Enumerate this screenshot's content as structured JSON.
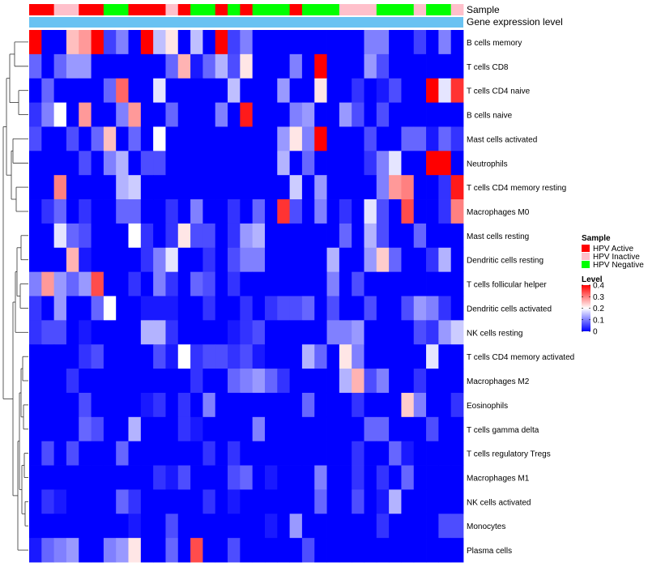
{
  "chart_data": {
    "type": "heatmap",
    "title": "",
    "annotations": [
      {
        "label": "Sample"
      },
      {
        "label": "Gene expression level"
      }
    ],
    "expression_bar_color": "#69c2f2",
    "sample_groups": [
      "HPV Active",
      "HPV Active",
      "HPV Inactive",
      "HPV Inactive",
      "HPV Active",
      "HPV Active",
      "HPV Negative",
      "HPV Negative",
      "HPV Active",
      "HPV Active",
      "HPV Active",
      "HPV Inactive",
      "HPV Active",
      "HPV Negative",
      "HPV Negative",
      "HPV Active",
      "HPV Negative",
      "HPV Active",
      "HPV Negative",
      "HPV Negative",
      "HPV Negative",
      "HPV Active",
      "HPV Negative",
      "HPV Negative",
      "HPV Negative",
      "HPV Inactive",
      "HPV Inactive",
      "HPV Inactive",
      "HPV Negative",
      "HPV Negative",
      "HPV Negative",
      "HPV Inactive",
      "HPV Negative",
      "HPV Negative",
      "HPV Inactive"
    ],
    "rows": [
      "B cells memory",
      "T cells CD8",
      "T cells CD4 naive",
      "B cells naive",
      "Mast cells activated",
      "Neutrophils",
      "T cells CD4 memory resting",
      "Macrophages M0",
      "Mast cells resting",
      "Dendritic cells resting",
      "T cells follicular helper",
      "Dendritic cells activated",
      "NK cells resting",
      "T cells CD4 memory activated",
      "Macrophages M2",
      "Eosinophils",
      "T cells gamma delta",
      "T cells regulatory  Tregs",
      "Macrophages M1",
      "NK cells activated",
      "Monocytes",
      "Plasma cells"
    ],
    "values": [
      [
        0.4,
        0.0,
        0.0,
        0.25,
        0.28,
        0.4,
        0.05,
        0.1,
        0.0,
        0.4,
        0.15,
        0.22,
        0.0,
        0.15,
        0.0,
        0.4,
        0.05,
        0.1,
        0.0,
        0.0,
        0.0,
        0.0,
        0.0,
        0.0,
        0.0,
        0.0,
        0.0,
        0.1,
        0.1,
        0.0,
        0.0,
        0.05,
        0.0,
        0.1,
        0.0
      ],
      [
        0.08,
        0.0,
        0.08,
        0.12,
        0.12,
        0.0,
        0.0,
        0.0,
        0.0,
        0.0,
        0.0,
        0.08,
        0.26,
        0.02,
        0.08,
        0.14,
        0.06,
        0.22,
        0.0,
        0.0,
        0.0,
        0.1,
        0.0,
        0.4,
        0.0,
        0.0,
        0.0,
        0.12,
        0.06,
        0.0,
        0.0,
        0.0,
        0.0,
        0.0,
        0.0
      ],
      [
        0.0,
        0.08,
        0.0,
        0.0,
        0.0,
        0.0,
        0.08,
        0.32,
        0.0,
        0.0,
        0.18,
        0.0,
        0.0,
        0.0,
        0.0,
        0.0,
        0.15,
        0.0,
        0.0,
        0.0,
        0.12,
        0.0,
        0.0,
        0.22,
        0.0,
        0.0,
        0.04,
        0.0,
        0.02,
        0.06,
        0.0,
        0.0,
        0.4,
        0.18,
        0.36
      ],
      [
        0.04,
        0.1,
        0.2,
        0.0,
        0.28,
        0.0,
        0.0,
        0.1,
        0.28,
        0.0,
        0.0,
        0.08,
        0.0,
        0.0,
        0.0,
        0.1,
        0.0,
        0.38,
        0.0,
        0.0,
        0.0,
        0.1,
        0.12,
        0.0,
        0.0,
        0.12,
        0.06,
        0.0,
        0.06,
        0.0,
        0.0,
        0.0,
        0.0,
        0.0,
        0.0
      ],
      [
        0.06,
        0.0,
        0.0,
        0.06,
        0.0,
        0.08,
        0.25,
        0.0,
        0.08,
        0.0,
        0.2,
        0.0,
        0.0,
        0.0,
        0.0,
        0.0,
        0.0,
        0.0,
        0.0,
        0.0,
        0.12,
        0.22,
        0.1,
        0.4,
        0.0,
        0.0,
        0.0,
        0.06,
        0.0,
        0.0,
        0.08,
        0.08,
        0.02,
        0.08,
        0.04
      ],
      [
        0.0,
        0.0,
        0.0,
        0.0,
        0.06,
        0.0,
        0.1,
        0.14,
        0.0,
        0.06,
        0.06,
        0.0,
        0.0,
        0.0,
        0.0,
        0.0,
        0.0,
        0.0,
        0.0,
        0.0,
        0.14,
        0.0,
        0.08,
        0.0,
        0.0,
        0.0,
        0.0,
        0.04,
        0.1,
        0.18,
        0.0,
        0.0,
        0.4,
        0.4,
        0.0
      ],
      [
        0.0,
        0.0,
        0.3,
        0.0,
        0.0,
        0.0,
        0.0,
        0.14,
        0.16,
        0.0,
        0.0,
        0.0,
        0.0,
        0.0,
        0.0,
        0.0,
        0.0,
        0.0,
        0.0,
        0.0,
        0.0,
        0.16,
        0.0,
        0.12,
        0.0,
        0.0,
        0.0,
        0.0,
        0.1,
        0.28,
        0.3,
        0.0,
        0.0,
        0.04,
        0.38
      ],
      [
        0.0,
        0.04,
        0.08,
        0.0,
        0.04,
        0.0,
        0.0,
        0.08,
        0.08,
        0.0,
        0.0,
        0.04,
        0.0,
        0.1,
        0.0,
        0.0,
        0.04,
        0.0,
        0.08,
        0.0,
        0.36,
        0.06,
        0.0,
        0.1,
        0.0,
        0.04,
        0.0,
        0.18,
        0.06,
        0.0,
        0.34,
        0.0,
        0.0,
        0.04,
        0.3
      ],
      [
        0.0,
        0.0,
        0.18,
        0.08,
        0.06,
        0.0,
        0.0,
        0.0,
        0.2,
        0.04,
        0.0,
        0.04,
        0.22,
        0.06,
        0.06,
        0.0,
        0.04,
        0.12,
        0.14,
        0.0,
        0.0,
        0.0,
        0.0,
        0.0,
        0.0,
        0.08,
        0.0,
        0.14,
        0.06,
        0.0,
        0.0,
        0.08,
        0.0,
        0.0,
        0.0
      ],
      [
        0.0,
        0.0,
        0.0,
        0.26,
        0.02,
        0.0,
        0.0,
        0.0,
        0.0,
        0.04,
        0.1,
        0.18,
        0.0,
        0.0,
        0.04,
        0.0,
        0.06,
        0.1,
        0.1,
        0.0,
        0.0,
        0.0,
        0.0,
        0.0,
        0.14,
        0.0,
        0.0,
        0.12,
        0.24,
        0.08,
        0.0,
        0.0,
        0.04,
        0.14,
        0.0
      ],
      [
        0.1,
        0.28,
        0.12,
        0.08,
        0.12,
        0.34,
        0.0,
        0.0,
        0.04,
        0.0,
        0.1,
        0.04,
        0.0,
        0.08,
        0.06,
        0.0,
        0.04,
        0.0,
        0.0,
        0.0,
        0.0,
        0.0,
        0.0,
        0.0,
        0.1,
        0.0,
        0.06,
        0.0,
        0.0,
        0.0,
        0.0,
        0.0,
        0.0,
        0.0,
        0.0
      ],
      [
        0.04,
        0.0,
        0.12,
        0.0,
        0.0,
        0.08,
        0.2,
        0.0,
        0.0,
        0.02,
        0.02,
        0.02,
        0.0,
        0.0,
        0.04,
        0.0,
        0.0,
        0.04,
        0.0,
        0.04,
        0.06,
        0.06,
        0.08,
        0.0,
        0.06,
        0.0,
        0.0,
        0.06,
        0.0,
        0.0,
        0.06,
        0.12,
        0.1,
        0.04,
        0.0
      ],
      [
        0.04,
        0.06,
        0.06,
        0.0,
        0.02,
        0.0,
        0.0,
        0.0,
        0.0,
        0.14,
        0.14,
        0.04,
        0.0,
        0.0,
        0.0,
        0.0,
        0.02,
        0.04,
        0.06,
        0.0,
        0.0,
        0.0,
        0.0,
        0.0,
        0.1,
        0.1,
        0.12,
        0.0,
        0.0,
        0.0,
        0.0,
        0.06,
        0.04,
        0.12,
        0.16
      ],
      [
        0.0,
        0.0,
        0.0,
        0.0,
        0.04,
        0.06,
        0.0,
        0.0,
        0.0,
        0.0,
        0.06,
        0.02,
        0.2,
        0.04,
        0.06,
        0.06,
        0.04,
        0.06,
        0.02,
        0.0,
        0.0,
        0.0,
        0.14,
        0.08,
        0.0,
        0.22,
        0.1,
        0.0,
        0.0,
        0.0,
        0.0,
        0.0,
        0.18,
        0.0,
        0.0
      ],
      [
        0.0,
        0.0,
        0.0,
        0.04,
        0.0,
        0.0,
        0.0,
        0.0,
        0.0,
        0.0,
        0.0,
        0.0,
        0.0,
        0.04,
        0.0,
        0.0,
        0.08,
        0.1,
        0.12,
        0.08,
        0.04,
        0.0,
        0.0,
        0.0,
        0.0,
        0.14,
        0.26,
        0.06,
        0.1,
        0.0,
        0.0,
        0.04,
        0.0,
        0.0,
        0.0
      ],
      [
        0.0,
        0.0,
        0.0,
        0.0,
        0.06,
        0.0,
        0.0,
        0.0,
        0.0,
        0.02,
        0.04,
        0.0,
        0.04,
        0.0,
        0.1,
        0.0,
        0.0,
        0.0,
        0.0,
        0.0,
        0.0,
        0.0,
        0.08,
        0.0,
        0.0,
        0.0,
        0.04,
        0.0,
        0.0,
        0.0,
        0.24,
        0.1,
        0.0,
        0.0,
        0.04
      ],
      [
        0.0,
        0.0,
        0.0,
        0.0,
        0.08,
        0.06,
        0.0,
        0.0,
        0.14,
        0.0,
        0.0,
        0.0,
        0.04,
        0.02,
        0.0,
        0.0,
        0.0,
        0.0,
        0.1,
        0.0,
        0.0,
        0.0,
        0.0,
        0.0,
        0.0,
        0.0,
        0.0,
        0.08,
        0.08,
        0.0,
        0.0,
        0.0,
        0.06,
        0.0,
        0.0
      ],
      [
        0.0,
        0.06,
        0.0,
        0.06,
        0.0,
        0.0,
        0.0,
        0.08,
        0.0,
        0.0,
        0.0,
        0.0,
        0.0,
        0.0,
        0.04,
        0.0,
        0.04,
        0.0,
        0.0,
        0.0,
        0.0,
        0.0,
        0.0,
        0.0,
        0.0,
        0.0,
        0.04,
        0.0,
        0.0,
        0.08,
        0.02,
        0.0,
        0.0,
        0.0,
        0.0
      ],
      [
        0.0,
        0.0,
        0.0,
        0.0,
        0.0,
        0.0,
        0.0,
        0.0,
        0.0,
        0.0,
        0.04,
        0.02,
        0.06,
        0.0,
        0.0,
        0.0,
        0.06,
        0.08,
        0.0,
        0.02,
        0.0,
        0.0,
        0.0,
        0.1,
        0.0,
        0.0,
        0.04,
        0.0,
        0.04,
        0.0,
        0.08,
        0.0,
        0.0,
        0.0,
        0.0
      ],
      [
        0.0,
        0.04,
        0.02,
        0.0,
        0.0,
        0.0,
        0.0,
        0.08,
        0.04,
        0.0,
        0.0,
        0.0,
        0.0,
        0.0,
        0.04,
        0.0,
        0.02,
        0.0,
        0.0,
        0.0,
        0.0,
        0.0,
        0.0,
        0.08,
        0.0,
        0.0,
        0.06,
        0.0,
        0.02,
        0.14,
        0.0,
        0.0,
        0.0,
        0.0,
        0.0
      ],
      [
        0.0,
        0.0,
        0.0,
        0.0,
        0.0,
        0.0,
        0.0,
        0.0,
        0.02,
        0.0,
        0.0,
        0.06,
        0.0,
        0.0,
        0.0,
        0.0,
        0.0,
        0.0,
        0.0,
        0.02,
        0.0,
        0.12,
        0.0,
        0.0,
        0.0,
        0.0,
        0.0,
        0.0,
        0.04,
        0.0,
        0.0,
        0.0,
        0.0,
        0.06,
        0.06
      ],
      [
        0.02,
        0.08,
        0.1,
        0.12,
        0.0,
        0.0,
        0.1,
        0.12,
        0.22,
        0.0,
        0.0,
        0.08,
        0.0,
        0.34,
        0.0,
        0.0,
        0.06,
        0.0,
        0.0,
        0.0,
        0.0,
        0.0,
        0.06,
        0.0,
        0.0,
        0.0,
        0.0,
        0.0,
        0.0,
        0.0,
        0.0,
        0.0,
        0.0,
        0.0,
        0.0
      ]
    ],
    "legend": {
      "sample_title": "Sample",
      "sample_entries": [
        {
          "label": "HPV Active",
          "color": "#ff0000"
        },
        {
          "label": "HPV Inactive",
          "color": "#ffc0cb"
        },
        {
          "label": "HPV Negative",
          "color": "#00ff00"
        }
      ],
      "level_title": "Level",
      "level_ticks": [
        "0.4",
        "0.3",
        "0.2",
        "0.1",
        "0"
      ],
      "level_range": [
        0,
        0.4
      ],
      "placement": "right"
    },
    "colorscale": {
      "low": "#0000ff",
      "mid": "#ffffff",
      "high": "#ff0000",
      "midpoint": 0.2
    }
  }
}
